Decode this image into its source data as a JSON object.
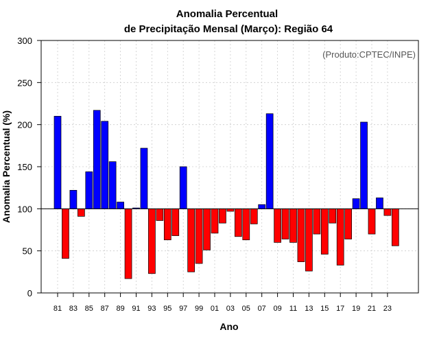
{
  "chart_data": {
    "type": "bar",
    "title_line1": "Anomalia Percentual",
    "title_line2": "de Precipitação Mensal (Março): Região 64",
    "xlabel": "Ano",
    "ylabel": "Anomalia Percentual (%)",
    "credit": "(Produto:CPTEC/INPE)",
    "ylim": [
      0,
      300
    ],
    "yticks": [
      0,
      50,
      100,
      150,
      200,
      250,
      300
    ],
    "baseline": 100,
    "grid": true,
    "colors": {
      "above": "#0000ff",
      "below": "#ff0000",
      "outline": "#000000",
      "grid": "#cccccc"
    },
    "categories": [
      "81",
      "82",
      "83",
      "84",
      "85",
      "86",
      "87",
      "88",
      "89",
      "90",
      "91",
      "92",
      "93",
      "94",
      "95",
      "96",
      "97",
      "98",
      "99",
      "00",
      "01",
      "02",
      "03",
      "04",
      "05",
      "06",
      "07",
      "08",
      "09",
      "10",
      "11",
      "12",
      "13",
      "14",
      "15",
      "16",
      "17",
      "18",
      "19",
      "20",
      "21",
      "22",
      "23",
      "24"
    ],
    "xtick_labels": [
      "81",
      "83",
      "85",
      "87",
      "89",
      "91",
      "93",
      "95",
      "97",
      "99",
      "01",
      "03",
      "05",
      "07",
      "09",
      "11",
      "13",
      "15",
      "17",
      "19",
      "21",
      "23"
    ],
    "values": [
      210,
      41,
      122,
      91,
      144,
      217,
      204,
      156,
      108,
      17,
      101,
      172,
      23,
      86,
      63,
      68,
      150,
      25,
      35,
      51,
      71,
      83,
      97,
      67,
      63,
      82,
      105,
      213,
      60,
      64,
      60,
      37,
      26,
      70,
      46,
      83,
      33,
      64,
      112,
      203,
      70,
      113,
      92,
      56
    ]
  }
}
